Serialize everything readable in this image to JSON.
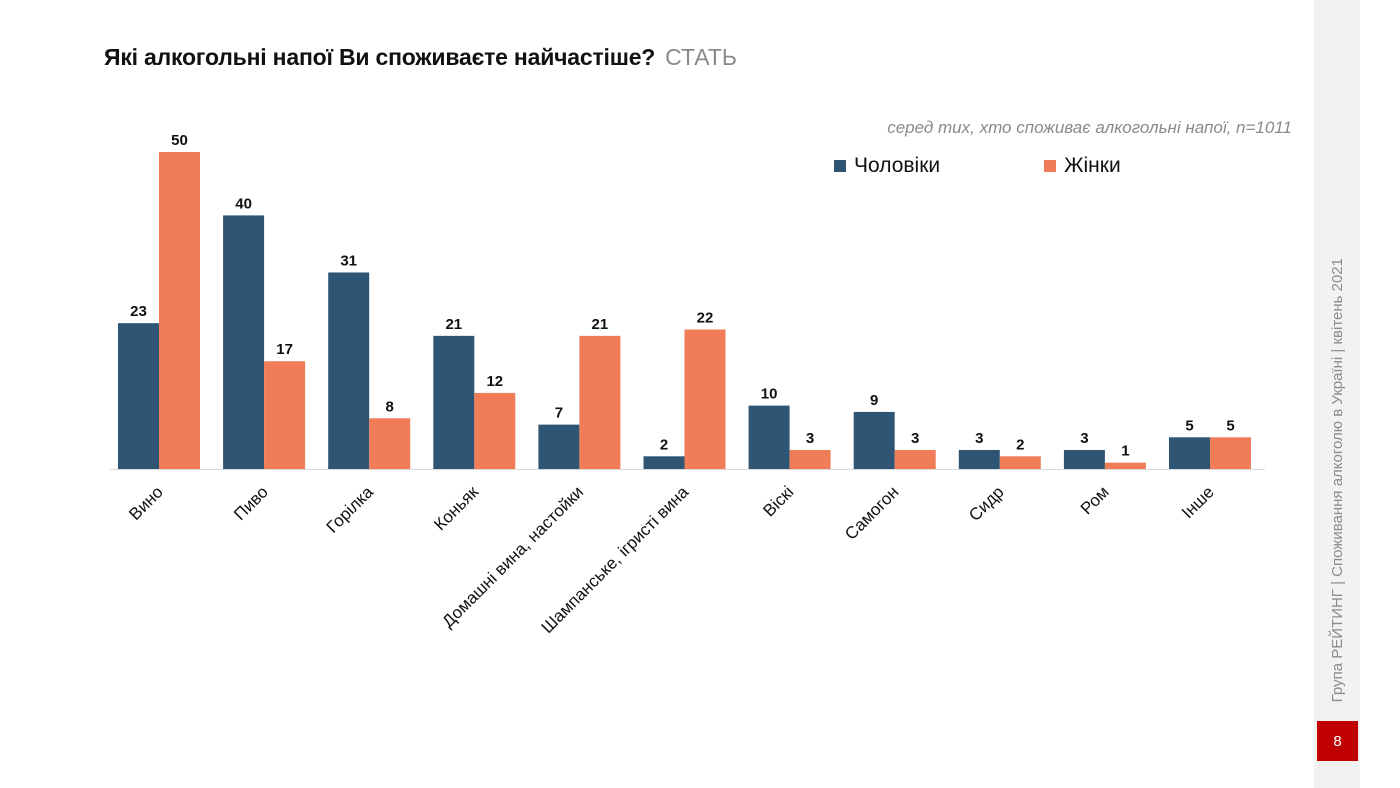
{
  "header": {
    "title": "Які алкогольні напої Ви споживаєте найчастіше?",
    "tag": "СТАТЬ"
  },
  "sidebar": {
    "text": "Група РЕЙТИНГ | Споживання алкоголю в Україні | квітень 2021",
    "page_number": "8"
  },
  "colors": {
    "men": "#2e5574",
    "women": "#f07d57",
    "axis": "#d9d9d9",
    "page_badge": "#c00000"
  },
  "chart_data": {
    "type": "bar",
    "subtitle": "серед тих, хто споживає алкогольні напої, n=1011",
    "categories": [
      "Вино",
      "Пиво",
      "Горілка",
      "Коньяк",
      "Домашні вина, настойки",
      "Шампанське, ігристі вина",
      "Віскі",
      "Самогон",
      "Сидр",
      "Ром",
      "Інше"
    ],
    "series": [
      {
        "name": "Чоловіки",
        "values": [
          23,
          40,
          31,
          21,
          7,
          2,
          10,
          9,
          3,
          3,
          5
        ]
      },
      {
        "name": "Жінки",
        "values": [
          50,
          17,
          8,
          12,
          21,
          22,
          3,
          3,
          2,
          1,
          5
        ]
      }
    ],
    "ylim": [
      0,
      50
    ],
    "grid": false,
    "legend": "top-right",
    "xlabel": "",
    "ylabel": ""
  }
}
